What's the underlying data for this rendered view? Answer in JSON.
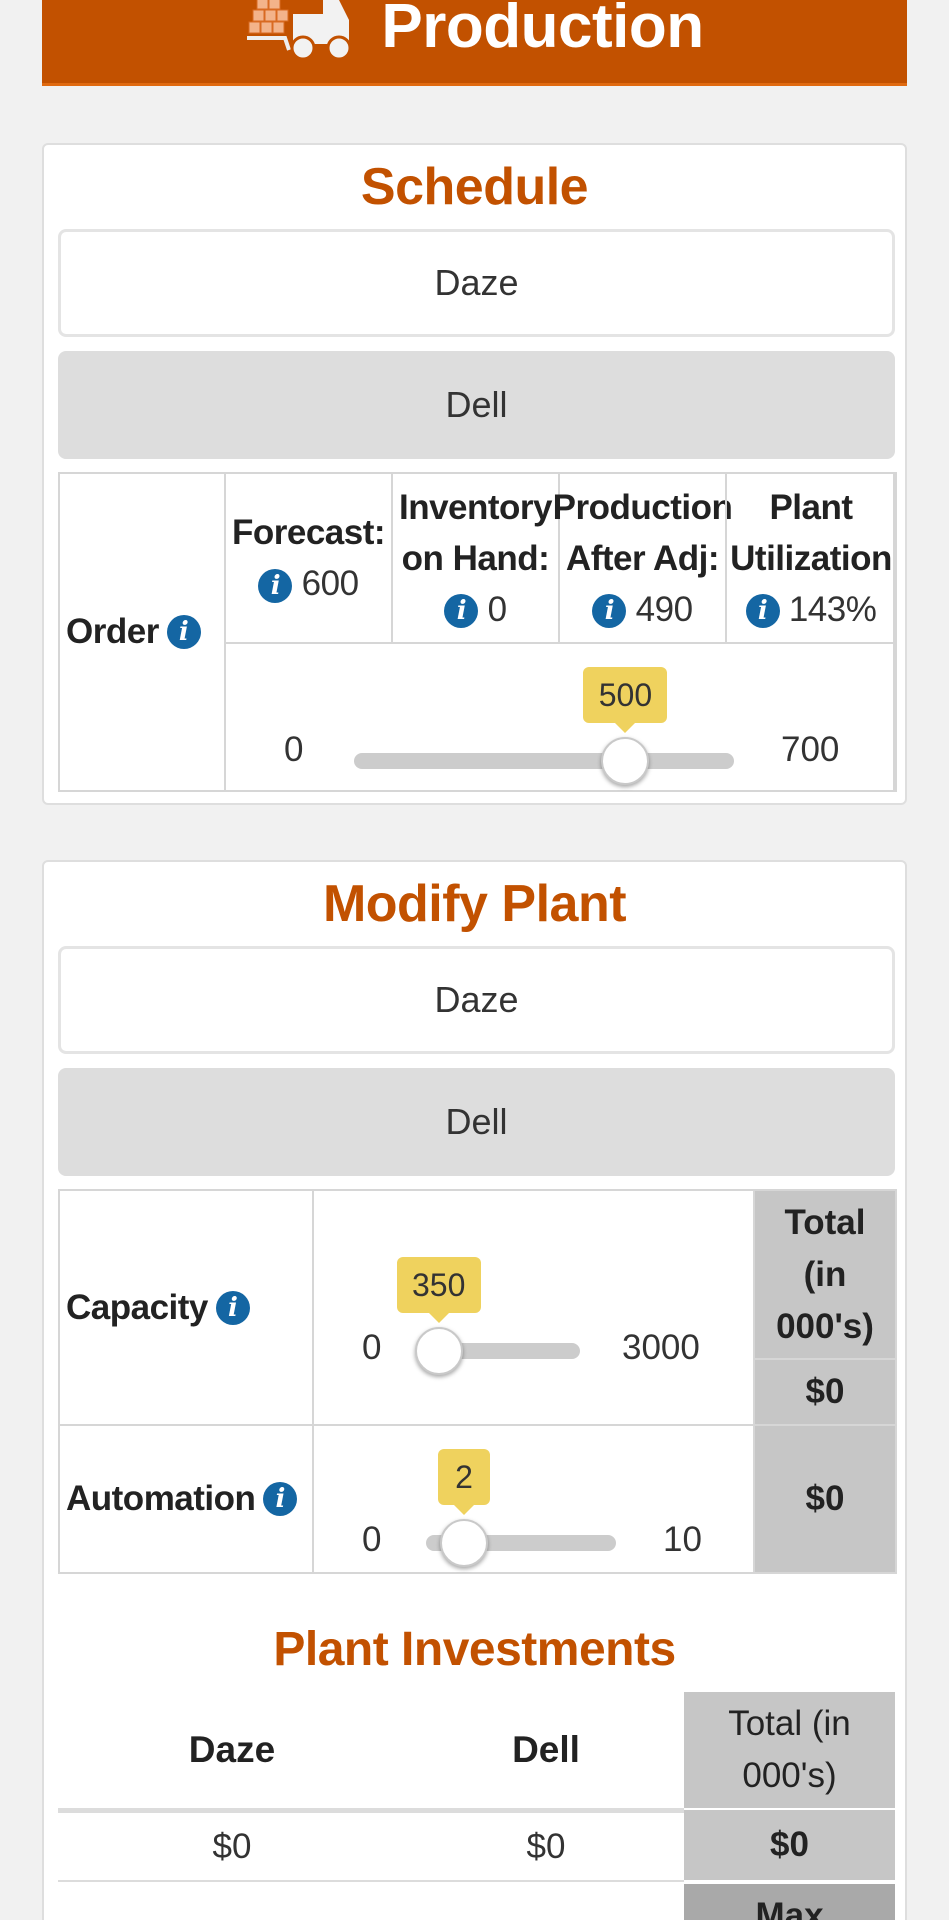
{
  "header": {
    "title": "Production",
    "icon": "hand-truck-icon"
  },
  "schedule": {
    "title": "Schedule",
    "buttons": [
      "Daze",
      "Dell"
    ],
    "order_label": "Order",
    "stats": [
      {
        "label_line1": "Forecast:",
        "label_line2": "",
        "value": "600"
      },
      {
        "label_line1": "Inventory",
        "label_line2": "on Hand:",
        "value": "0"
      },
      {
        "label_line1": "Production",
        "label_line2": "After Adj:",
        "value": "490"
      },
      {
        "label_line1": "Plant",
        "label_line2": "Utilization",
        "value": "143%"
      }
    ],
    "slider": {
      "min": "0",
      "max": "700",
      "value": "500",
      "min_value": 0,
      "max_value": 700,
      "current": 500
    }
  },
  "modify_plant": {
    "title": "Modify Plant",
    "buttons": [
      "Daze",
      "Dell"
    ],
    "capacity": {
      "label": "Capacity",
      "slider": {
        "min": "0",
        "max": "3000",
        "value": "350",
        "min_value": 0,
        "max_value": 3000,
        "current": 350
      },
      "total_header_line1": "Total",
      "total_header_line2": "(in",
      "total_header_line3": "000's)",
      "total_value": "$0"
    },
    "automation": {
      "label": "Automation",
      "slider": {
        "min": "0",
        "max": "10",
        "value": "2",
        "min_value": 0,
        "max_value": 10,
        "current": 2
      },
      "total_value": "$0"
    }
  },
  "plant_investments": {
    "title": "Plant Investments",
    "headers": [
      "Daze",
      "Dell"
    ],
    "total_header_line1": "Total (in",
    "total_header_line2": "000's)",
    "values": [
      "$0",
      "$0"
    ],
    "total_value": "$0",
    "partial_label": "Max"
  },
  "colors": {
    "brand": "#c25100",
    "info": "#1466a3",
    "bubble": "#efd25e",
    "total_bg": "#c6c6c6"
  }
}
